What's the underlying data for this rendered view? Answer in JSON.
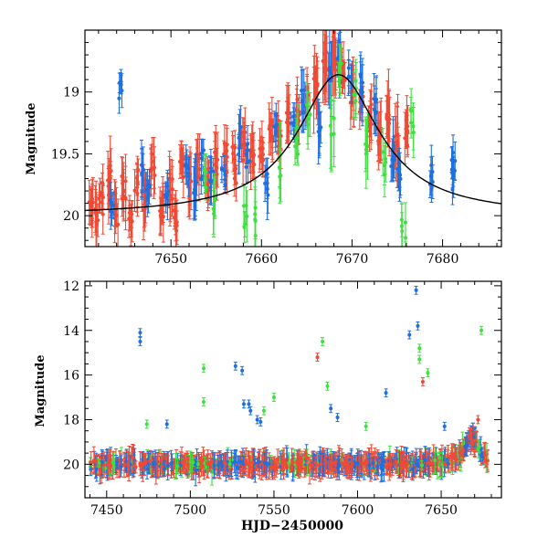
{
  "colors": {
    "red": "#f04a35",
    "blue": "#1e6fe0",
    "green": "#3fe03f",
    "model": "#000000",
    "axis": "#000000"
  },
  "chart_data": [
    {
      "type": "scatter",
      "xlabel": "",
      "ylabel": "Magnitude",
      "xlim": [
        7640.5,
        7686.5
      ],
      "ylim": [
        20.25,
        18.5
      ],
      "y_inverted": true,
      "xticks": [
        7650,
        7660,
        7670,
        7680
      ],
      "yticks": [
        19,
        19.5,
        20
      ],
      "ytick_labels": [
        "19",
        "19.5",
        "20"
      ],
      "grid": false,
      "legend": "none",
      "series": [
        {
          "color": "red",
          "x": [
            7641.2,
            7641.8,
            7642.3,
            7643.2,
            7644.0,
            7644.8,
            7645.5,
            7646.2,
            7647.0,
            7648.0,
            7649.0,
            7650.0,
            7650.5,
            7651.2,
            7652.0,
            7653.0,
            7654.0,
            7655.0,
            7656.0,
            7657.0,
            7658.0,
            7659.0,
            7660.0,
            7661.0,
            7662.0,
            7663.0,
            7664.0,
            7665.0,
            7666.0,
            7667.0,
            7668.0,
            7669.0,
            7670.0,
            7671.0,
            7672.0,
            7673.0,
            7674.0,
            7675.0,
            7676.0
          ],
          "y": [
            19.9,
            20.0,
            19.85,
            19.7,
            19.95,
            19.8,
            20.0,
            19.75,
            19.85,
            19.6,
            19.9,
            19.8,
            20.0,
            19.6,
            19.75,
            19.6,
            19.7,
            19.6,
            19.55,
            19.6,
            19.4,
            19.5,
            19.5,
            19.3,
            19.35,
            19.2,
            19.15,
            19.05,
            18.95,
            18.8,
            18.75,
            18.85,
            19.0,
            19.1,
            19.2,
            19.35,
            19.15,
            19.4,
            19.3
          ],
          "err": [
            0.15,
            0.2,
            0.12,
            0.18,
            0.15,
            0.2,
            0.12,
            0.15,
            0.18,
            0.2,
            0.15,
            0.2,
            0.15,
            0.12,
            0.18,
            0.15,
            0.12,
            0.2,
            0.15,
            0.12,
            0.15,
            0.18,
            0.12,
            0.15,
            0.12,
            0.18,
            0.15,
            0.12,
            0.2,
            0.25,
            0.2,
            0.15,
            0.18,
            0.12,
            0.15,
            0.18,
            0.2,
            0.25,
            0.15
          ]
        },
        {
          "color": "blue",
          "x": [
            7643.5,
            7644.5,
            7646.8,
            7647.5,
            7649.5,
            7651.8,
            7652.7,
            7653.5,
            7654.5,
            7655.8,
            7657.5,
            7658.5,
            7660.5,
            7661.5,
            7663.5,
            7664.6,
            7666.5,
            7667.5,
            7668.5,
            7669.8,
            7671.0,
            7672.5,
            7674.5,
            7675.3,
            7678.8,
            7681.2,
            7681.3
          ],
          "y": [
            19.9,
            18.97,
            19.65,
            19.75,
            19.8,
            19.65,
            19.75,
            19.6,
            19.7,
            19.7,
            19.4,
            19.5,
            19.75,
            19.3,
            19.25,
            19.1,
            19.3,
            18.9,
            18.7,
            18.85,
            18.9,
            19.1,
            19.5,
            19.7,
            19.7,
            19.6,
            19.7
          ],
          "err": [
            0.12,
            0.1,
            0.15,
            0.12,
            0.15,
            0.12,
            0.18,
            0.12,
            0.15,
            0.1,
            0.15,
            0.12,
            0.2,
            0.15,
            0.12,
            0.18,
            0.2,
            0.25,
            0.2,
            0.15,
            0.2,
            0.15,
            0.2,
            0.15,
            0.12,
            0.12,
            0.12
          ]
        },
        {
          "color": "green",
          "x": [
            7653.8,
            7654.8,
            7658.2,
            7659.2,
            7662.2,
            7663.8,
            7665.2,
            7667.8,
            7668.6,
            7670.3,
            7671.6,
            7673.6,
            7675.7,
            7676.6
          ],
          "y": [
            19.65,
            19.9,
            20.0,
            20.05,
            19.6,
            19.4,
            19.2,
            19.3,
            18.85,
            19.0,
            19.45,
            19.6,
            20.1,
            19.2
          ],
          "err": [
            0.12,
            0.15,
            0.15,
            0.2,
            0.25,
            0.15,
            0.2,
            0.3,
            0.15,
            0.25,
            0.2,
            0.15,
            0.15,
            0.15
          ]
        }
      ],
      "model_curve": {
        "peak_x": 7668.5,
        "peak_y": 18.86,
        "base_y": 20.0,
        "width": 5.5
      }
    },
    {
      "type": "scatter",
      "xlabel": "HJD−2450000",
      "ylabel": "Magnitude",
      "xlim": [
        7437,
        7686
      ],
      "ylim": [
        21.5,
        11.8
      ],
      "y_inverted": true,
      "xticks": [
        7450,
        7500,
        7550,
        7600,
        7650
      ],
      "yticks": [
        12,
        14,
        16,
        18,
        20
      ],
      "grid": false,
      "legend": "none",
      "outliers": [
        {
          "color": "blue",
          "x": 7470,
          "y": 14.1
        },
        {
          "color": "blue",
          "x": 7470,
          "y": 14.5
        },
        {
          "color": "green",
          "x": 7508,
          "y": 15.7
        },
        {
          "color": "blue",
          "x": 7527,
          "y": 15.6
        },
        {
          "color": "blue",
          "x": 7531,
          "y": 15.8
        },
        {
          "color": "blue",
          "x": 7532,
          "y": 17.3
        },
        {
          "color": "blue",
          "x": 7535,
          "y": 17.3
        },
        {
          "color": "blue",
          "x": 7536,
          "y": 17.6
        },
        {
          "color": "blue",
          "x": 7540,
          "y": 18.0
        },
        {
          "color": "blue",
          "x": 7542,
          "y": 18.1
        },
        {
          "color": "green",
          "x": 7544,
          "y": 17.6
        },
        {
          "color": "green",
          "x": 7550,
          "y": 17.0
        },
        {
          "color": "red",
          "x": 7576,
          "y": 15.2
        },
        {
          "color": "green",
          "x": 7579,
          "y": 14.5
        },
        {
          "color": "blue",
          "x": 7584,
          "y": 17.5
        },
        {
          "color": "green",
          "x": 7582,
          "y": 16.5
        },
        {
          "color": "blue",
          "x": 7588,
          "y": 17.9
        },
        {
          "color": "blue",
          "x": 7617,
          "y": 16.8
        },
        {
          "color": "blue",
          "x": 7631,
          "y": 14.2
        },
        {
          "color": "blue",
          "x": 7635,
          "y": 12.2
        },
        {
          "color": "blue",
          "x": 7636,
          "y": 13.8
        },
        {
          "color": "green",
          "x": 7637,
          "y": 14.8
        },
        {
          "color": "green",
          "x": 7637,
          "y": 15.3
        },
        {
          "color": "red",
          "x": 7639,
          "y": 16.3
        },
        {
          "color": "green",
          "x": 7642,
          "y": 15.9
        },
        {
          "color": "blue",
          "x": 7652,
          "y": 18.3
        },
        {
          "color": "green",
          "x": 7674,
          "y": 14.0
        },
        {
          "color": "red",
          "x": 7672,
          "y": 18.0
        },
        {
          "color": "green",
          "x": 7508,
          "y": 17.2
        },
        {
          "color": "green",
          "x": 7474,
          "y": 18.2
        },
        {
          "color": "blue",
          "x": 7486,
          "y": 18.2
        },
        {
          "color": "green",
          "x": 7605,
          "y": 18.3
        }
      ],
      "baseline_mag": 20.0,
      "flare": {
        "peak_x": 7668.5,
        "peak_y": 18.86,
        "width": 5.5
      }
    }
  ]
}
